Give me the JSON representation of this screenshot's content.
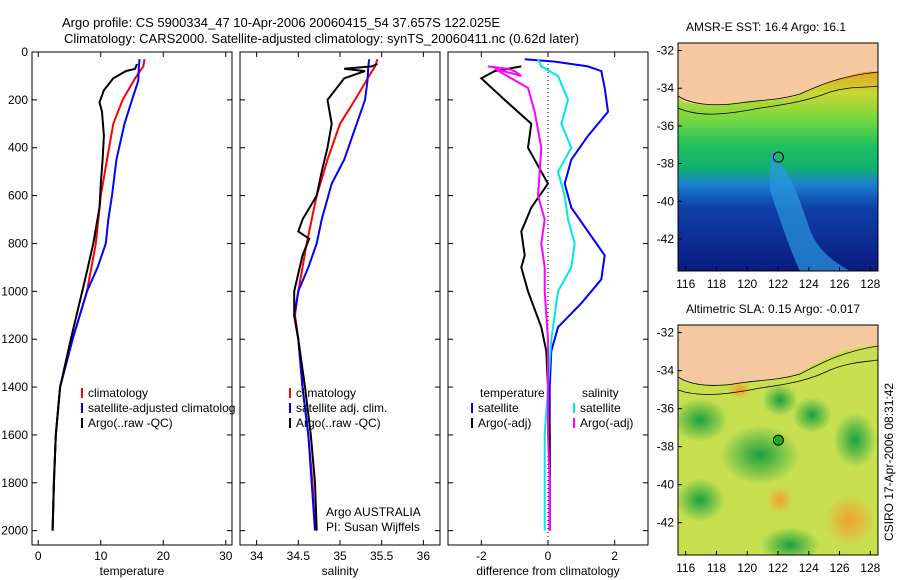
{
  "title_line1": "Argo profile: CS 5900334_47 10-Apr-2006 20060415_54 37.657S 122.025E",
  "title_line2": "Climatology: CARS2000. Satellite-adjusted climatology: synTS_20060411.nc (0.62d later)",
  "footer": {
    "vertical": "CSIRO 17-Apr-2006 08:31:42"
  },
  "colors": {
    "climatology": "#ff0000",
    "satellite": "#0000ff",
    "argo": "#000000",
    "sat_diff_sal": "#00e5ee",
    "argo_diff_sal": "#ff00ff",
    "land": "#f5c8a0",
    "marker_sst": "#006400",
    "marker_sla": "#22aa22"
  },
  "chart_data": [
    {
      "type": "line",
      "xlabel": "temperature",
      "ylabel": "",
      "xlim": [
        -1,
        31
      ],
      "ylim": [
        2060,
        0
      ],
      "xticks": [
        0,
        10,
        20,
        30
      ],
      "yticks": [
        0,
        200,
        400,
        600,
        800,
        1000,
        1200,
        1400,
        1600,
        1800,
        2000
      ],
      "legend": [
        "climatology",
        "satellite-adjusted climatolog",
        "Argo(..raw -QC)"
      ],
      "legend_position": "lower-middle",
      "series": [
        {
          "name": "climatology",
          "color": "#ff0000",
          "points": [
            [
              17.0,
              30
            ],
            [
              16.8,
              60
            ],
            [
              15.5,
              110
            ],
            [
              13.5,
              200
            ],
            [
              12.0,
              300
            ],
            [
              11.0,
              450
            ],
            [
              10.0,
              600
            ],
            [
              9.2,
              800
            ],
            [
              7.8,
              1000
            ],
            [
              5.5,
              1200
            ],
            [
              3.5,
              1400
            ],
            [
              2.8,
              1600
            ],
            [
              2.5,
              1800
            ],
            [
              2.3,
              2000
            ]
          ]
        },
        {
          "name": "satellite-adjusted climatolog",
          "color": "#0000ff",
          "points": [
            [
              16.2,
              30
            ],
            [
              16.1,
              60
            ],
            [
              16.0,
              120
            ],
            [
              15.0,
              200
            ],
            [
              13.8,
              300
            ],
            [
              12.5,
              450
            ],
            [
              11.8,
              600
            ],
            [
              11.2,
              700
            ],
            [
              10.8,
              800
            ],
            [
              9.5,
              900
            ],
            [
              7.8,
              1000
            ],
            [
              5.5,
              1200
            ],
            [
              3.5,
              1400
            ],
            [
              2.8,
              1600
            ],
            [
              2.5,
              1800
            ],
            [
              2.3,
              2000
            ]
          ]
        },
        {
          "name": "Argo(..raw -QC)",
          "color": "#000000",
          "points": [
            [
              15.8,
              50
            ],
            [
              15.5,
              70
            ],
            [
              14.0,
              80
            ],
            [
              12.0,
              110
            ],
            [
              10.5,
              160
            ],
            [
              9.8,
              210
            ],
            [
              10.2,
              250
            ],
            [
              10.5,
              350
            ],
            [
              10.3,
              450
            ],
            [
              10.0,
              550
            ],
            [
              9.8,
              650
            ],
            [
              8.8,
              800
            ],
            [
              7.5,
              950
            ],
            [
              5.2,
              1200
            ],
            [
              3.5,
              1400
            ],
            [
              2.8,
              1600
            ],
            [
              2.5,
              1800
            ],
            [
              2.3,
              2000
            ]
          ]
        }
      ]
    },
    {
      "type": "line",
      "xlabel": "salinity",
      "ylabel": "",
      "xlim": [
        33.8,
        36.2
      ],
      "ylim": [
        2060,
        0
      ],
      "xticks": [
        34,
        34.5,
        35,
        35.5,
        36
      ],
      "xtick_labels": [
        "34",
        "34.5",
        "35",
        "35.5",
        "36"
      ],
      "legend": [
        "climatology",
        "satellite adj. clim.",
        "Argo(..raw -QC)"
      ],
      "legend_position": "lower-middle",
      "annotations": [
        "Argo AUSTRALIA",
        "PI: Susan Wijffels"
      ],
      "series": [
        {
          "name": "climatology",
          "color": "#ff0000",
          "points": [
            [
              35.45,
              30
            ],
            [
              35.42,
              60
            ],
            [
              35.35,
              100
            ],
            [
              35.18,
              200
            ],
            [
              35.0,
              300
            ],
            [
              34.85,
              450
            ],
            [
              34.72,
              600
            ],
            [
              34.6,
              800
            ],
            [
              34.5,
              1000
            ],
            [
              34.46,
              1100
            ],
            [
              34.5,
              1200
            ],
            [
              34.55,
              1400
            ],
            [
              34.62,
              1600
            ],
            [
              34.67,
              1800
            ],
            [
              34.7,
              2000
            ]
          ]
        },
        {
          "name": "satellite adj. clim.",
          "color": "#0000ff",
          "points": [
            [
              35.35,
              30
            ],
            [
              35.34,
              60
            ],
            [
              35.33,
              120
            ],
            [
              35.3,
              200
            ],
            [
              35.2,
              300
            ],
            [
              35.05,
              450
            ],
            [
              34.9,
              550
            ],
            [
              34.78,
              700
            ],
            [
              34.72,
              800
            ],
            [
              34.62,
              900
            ],
            [
              34.5,
              1000
            ],
            [
              34.45,
              1100
            ],
            [
              34.5,
              1200
            ],
            [
              34.55,
              1400
            ],
            [
              34.62,
              1600
            ],
            [
              34.66,
              1800
            ],
            [
              34.7,
              2000
            ]
          ]
        },
        {
          "name": "Argo(..raw -QC)",
          "color": "#000000",
          "points": [
            [
              35.45,
              50
            ],
            [
              35.38,
              60
            ],
            [
              35.05,
              70
            ],
            [
              35.3,
              80
            ],
            [
              35.05,
              110
            ],
            [
              34.85,
              200
            ],
            [
              34.9,
              300
            ],
            [
              34.85,
              400
            ],
            [
              34.78,
              500
            ],
            [
              34.72,
              600
            ],
            [
              34.55,
              700
            ],
            [
              34.5,
              750
            ],
            [
              34.63,
              780
            ],
            [
              34.55,
              850
            ],
            [
              34.45,
              1000
            ],
            [
              34.45,
              1100
            ],
            [
              34.5,
              1200
            ],
            [
              34.58,
              1400
            ],
            [
              34.65,
              1600
            ],
            [
              34.7,
              1800
            ],
            [
              34.72,
              2000
            ]
          ]
        }
      ]
    },
    {
      "type": "line",
      "xlabel": "difference from climatology",
      "ylabel": "",
      "xlim": [
        -3,
        3
      ],
      "ylim": [
        2060,
        0
      ],
      "xticks": [
        -2,
        0,
        2
      ],
      "legend_left_title": "temperature",
      "legend_right_title": "salinity",
      "legend_left": [
        "satellite",
        "Argo(-adj)"
      ],
      "legend_right": [
        "satellite",
        "Argo(-adj)"
      ],
      "legend_position": "lower-middle",
      "series": [
        {
          "name": "temperature satellite",
          "color": "#0000ff",
          "points": [
            [
              -0.7,
              30
            ],
            [
              0.2,
              40
            ],
            [
              1.2,
              60
            ],
            [
              1.6,
              80
            ],
            [
              1.7,
              150
            ],
            [
              1.8,
              250
            ],
            [
              1.2,
              350
            ],
            [
              0.7,
              450
            ],
            [
              0.5,
              550
            ],
            [
              0.7,
              650
            ],
            [
              1.2,
              750
            ],
            [
              1.7,
              850
            ],
            [
              1.6,
              950
            ],
            [
              1.0,
              1050
            ],
            [
              0.3,
              1150
            ],
            [
              0.1,
              1250
            ],
            [
              0.05,
              1400
            ],
            [
              0.05,
              1600
            ],
            [
              0.05,
              1800
            ],
            [
              0.05,
              2000
            ]
          ]
        },
        {
          "name": "temperature Argo(-adj)",
          "color": "#000000",
          "points": [
            [
              -0.8,
              60
            ],
            [
              -1.6,
              80
            ],
            [
              -2.0,
              110
            ],
            [
              -1.3,
              200
            ],
            [
              -0.5,
              300
            ],
            [
              -0.6,
              400
            ],
            [
              -0.2,
              500
            ],
            [
              0.0,
              550
            ],
            [
              -0.5,
              650
            ],
            [
              -0.8,
              750
            ],
            [
              -0.7,
              850
            ],
            [
              -0.8,
              900
            ],
            [
              -0.6,
              1000
            ],
            [
              -0.2,
              1150
            ],
            [
              -0.05,
              1250
            ],
            [
              0.0,
              1400
            ],
            [
              0.05,
              1600
            ],
            [
              0.05,
              1800
            ],
            [
              0.05,
              2000
            ]
          ]
        },
        {
          "name": "salinity satellite",
          "color": "#00e5ee",
          "points": [
            [
              -0.3,
              30
            ],
            [
              -0.2,
              60
            ],
            [
              0.3,
              100
            ],
            [
              0.6,
              200
            ],
            [
              0.4,
              300
            ],
            [
              0.7,
              400
            ],
            [
              0.3,
              500
            ],
            [
              0.5,
              600
            ],
            [
              0.6,
              700
            ],
            [
              0.8,
              800
            ],
            [
              0.7,
              900
            ],
            [
              0.3,
              1000
            ],
            [
              0.1,
              1200
            ],
            [
              0.0,
              1400
            ],
            [
              -0.1,
              1600
            ],
            [
              -0.1,
              1800
            ],
            [
              -0.1,
              2000
            ]
          ]
        },
        {
          "name": "salinity Argo(-adj)",
          "color": "#ff00ff",
          "points": [
            [
              -1.8,
              60
            ],
            [
              -1.2,
              70
            ],
            [
              -1.0,
              80
            ],
            [
              -0.8,
              100
            ],
            [
              -1.6,
              70
            ],
            [
              -0.6,
              150
            ],
            [
              -0.4,
              250
            ],
            [
              -0.2,
              400
            ],
            [
              -0.3,
              600
            ],
            [
              -0.1,
              700
            ],
            [
              -0.2,
              800
            ],
            [
              -0.1,
              900
            ],
            [
              -0.1,
              1000
            ],
            [
              0.0,
              1200
            ],
            [
              0.0,
              1400
            ],
            [
              0.0,
              1600
            ],
            [
              0.05,
              1800
            ],
            [
              0.05,
              2000
            ]
          ]
        }
      ]
    },
    {
      "type": "heatmap",
      "title": "AMSR-E SST: 16.4 Argo: 16.1",
      "xlim": [
        115.5,
        128.5
      ],
      "ylim": [
        -43.7,
        -31.6
      ],
      "xticks": [
        116,
        118,
        120,
        122,
        124,
        126,
        128
      ],
      "yticks": [
        -32,
        -34,
        -36,
        -38,
        -40,
        -42
      ],
      "marker": {
        "lon": 122.025,
        "lat": -37.657
      }
    },
    {
      "type": "heatmap",
      "title": "Altimetric SLA: 0.15 Argo: -0.017",
      "xlim": [
        115.5,
        128.5
      ],
      "ylim": [
        -43.7,
        -31.6
      ],
      "xticks": [
        116,
        118,
        120,
        122,
        124,
        126,
        128
      ],
      "yticks": [
        -32,
        -34,
        -36,
        -38,
        -40,
        -42
      ],
      "marker": {
        "lon": 122.025,
        "lat": -37.657
      }
    }
  ]
}
